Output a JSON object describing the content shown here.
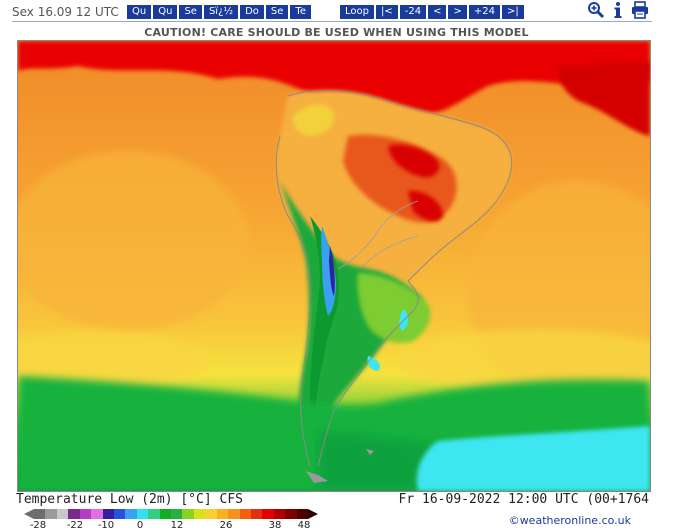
{
  "header": {
    "date_label": "Sex 16.09 12 UTC",
    "day_buttons": [
      "Qu",
      "Qu",
      "Se",
      "Sï¿½",
      "Do",
      "Se",
      "Te"
    ],
    "step_buttons": [
      "Loop",
      "|<",
      "-24",
      "<",
      ">",
      "+24",
      ">|"
    ],
    "tools": [
      "zoom-icon",
      "info-icon",
      "print-icon"
    ]
  },
  "caution": "CAUTION! CARE SHOULD BE USED WHEN USING THIS MODEL",
  "footer": {
    "title": "Temperature Low (2m) [°C] CFS",
    "valid": "Fr 16-09-2022 12:00 UTC (00+1764",
    "credit": "©weatheronline.co.uk"
  },
  "legend": {
    "colors": [
      "#6e6e6e",
      "#9a9a9a",
      "#c8c8c8",
      "#7a2a8a",
      "#b040c0",
      "#e070e0",
      "#3020a0",
      "#2a50e0",
      "#3aa0f0",
      "#30e0f0",
      "#30d080",
      "#10b020",
      "#2ab040",
      "#8cd020",
      "#d8e020",
      "#f8d030",
      "#f8b020",
      "#f89020",
      "#f06010",
      "#e03010",
      "#e00000",
      "#b00000",
      "#800000",
      "#500000"
    ],
    "tick_labels": [
      "-28",
      "-22",
      "-10",
      "0",
      "12",
      "26",
      "38",
      "48"
    ]
  },
  "map": {
    "colors": {
      "ocean_warm": "#f79a2e",
      "ocean_mid": "#f8b43a",
      "ocean_yellow": "#f9d642",
      "hot": "#e60000",
      "deep_red": "#b00000",
      "green": "#19b43c",
      "light_green": "#8fd23a",
      "cyan": "#3de6f0",
      "blue": "#2aa0f0",
      "violet": "#3020a0"
    }
  }
}
